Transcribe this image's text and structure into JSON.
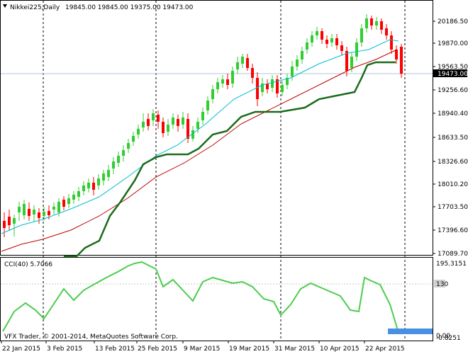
{
  "header": {
    "symbol_text": "Nikkei225,Daily",
    "ohlc_text": "19845.00 19845.00 19375.00 19473.00"
  },
  "indicator": {
    "label": "CCI(40) 5.7066"
  },
  "copyright": "VFX Trader, © 2001-2014, MetaQuotes Software Corp.",
  "price_axis": {
    "ticks": [
      "20186.50",
      "19870.00",
      "19563.50",
      "19256.60",
      "18940.40",
      "18633.50",
      "18326.60",
      "18010.20",
      "17703.50",
      "17396.60",
      "17089.70"
    ],
    "current_price_label": "19473.00"
  },
  "cci_axis": {
    "ticks": [
      "195.3151",
      "130",
      "0.00",
      "-0.8251"
    ]
  },
  "time_axis": {
    "labels": [
      "22 Jan 2015",
      "3 Feb 2015",
      "13 Feb 2015",
      "25 Feb 2015",
      "9 Mar 2015",
      "19 Mar 2015",
      "31 Mar 2015",
      "10 Apr 2015",
      "22 Apr 2015"
    ]
  },
  "colors": {
    "bull": "#32cd32",
    "bear": "#ff0000",
    "ma_fast": "#00bcd4",
    "ma_red": "#c00000",
    "ma_green": "#1a6b1a",
    "cci": "#4ccc4c",
    "grid": "#000000"
  }
}
